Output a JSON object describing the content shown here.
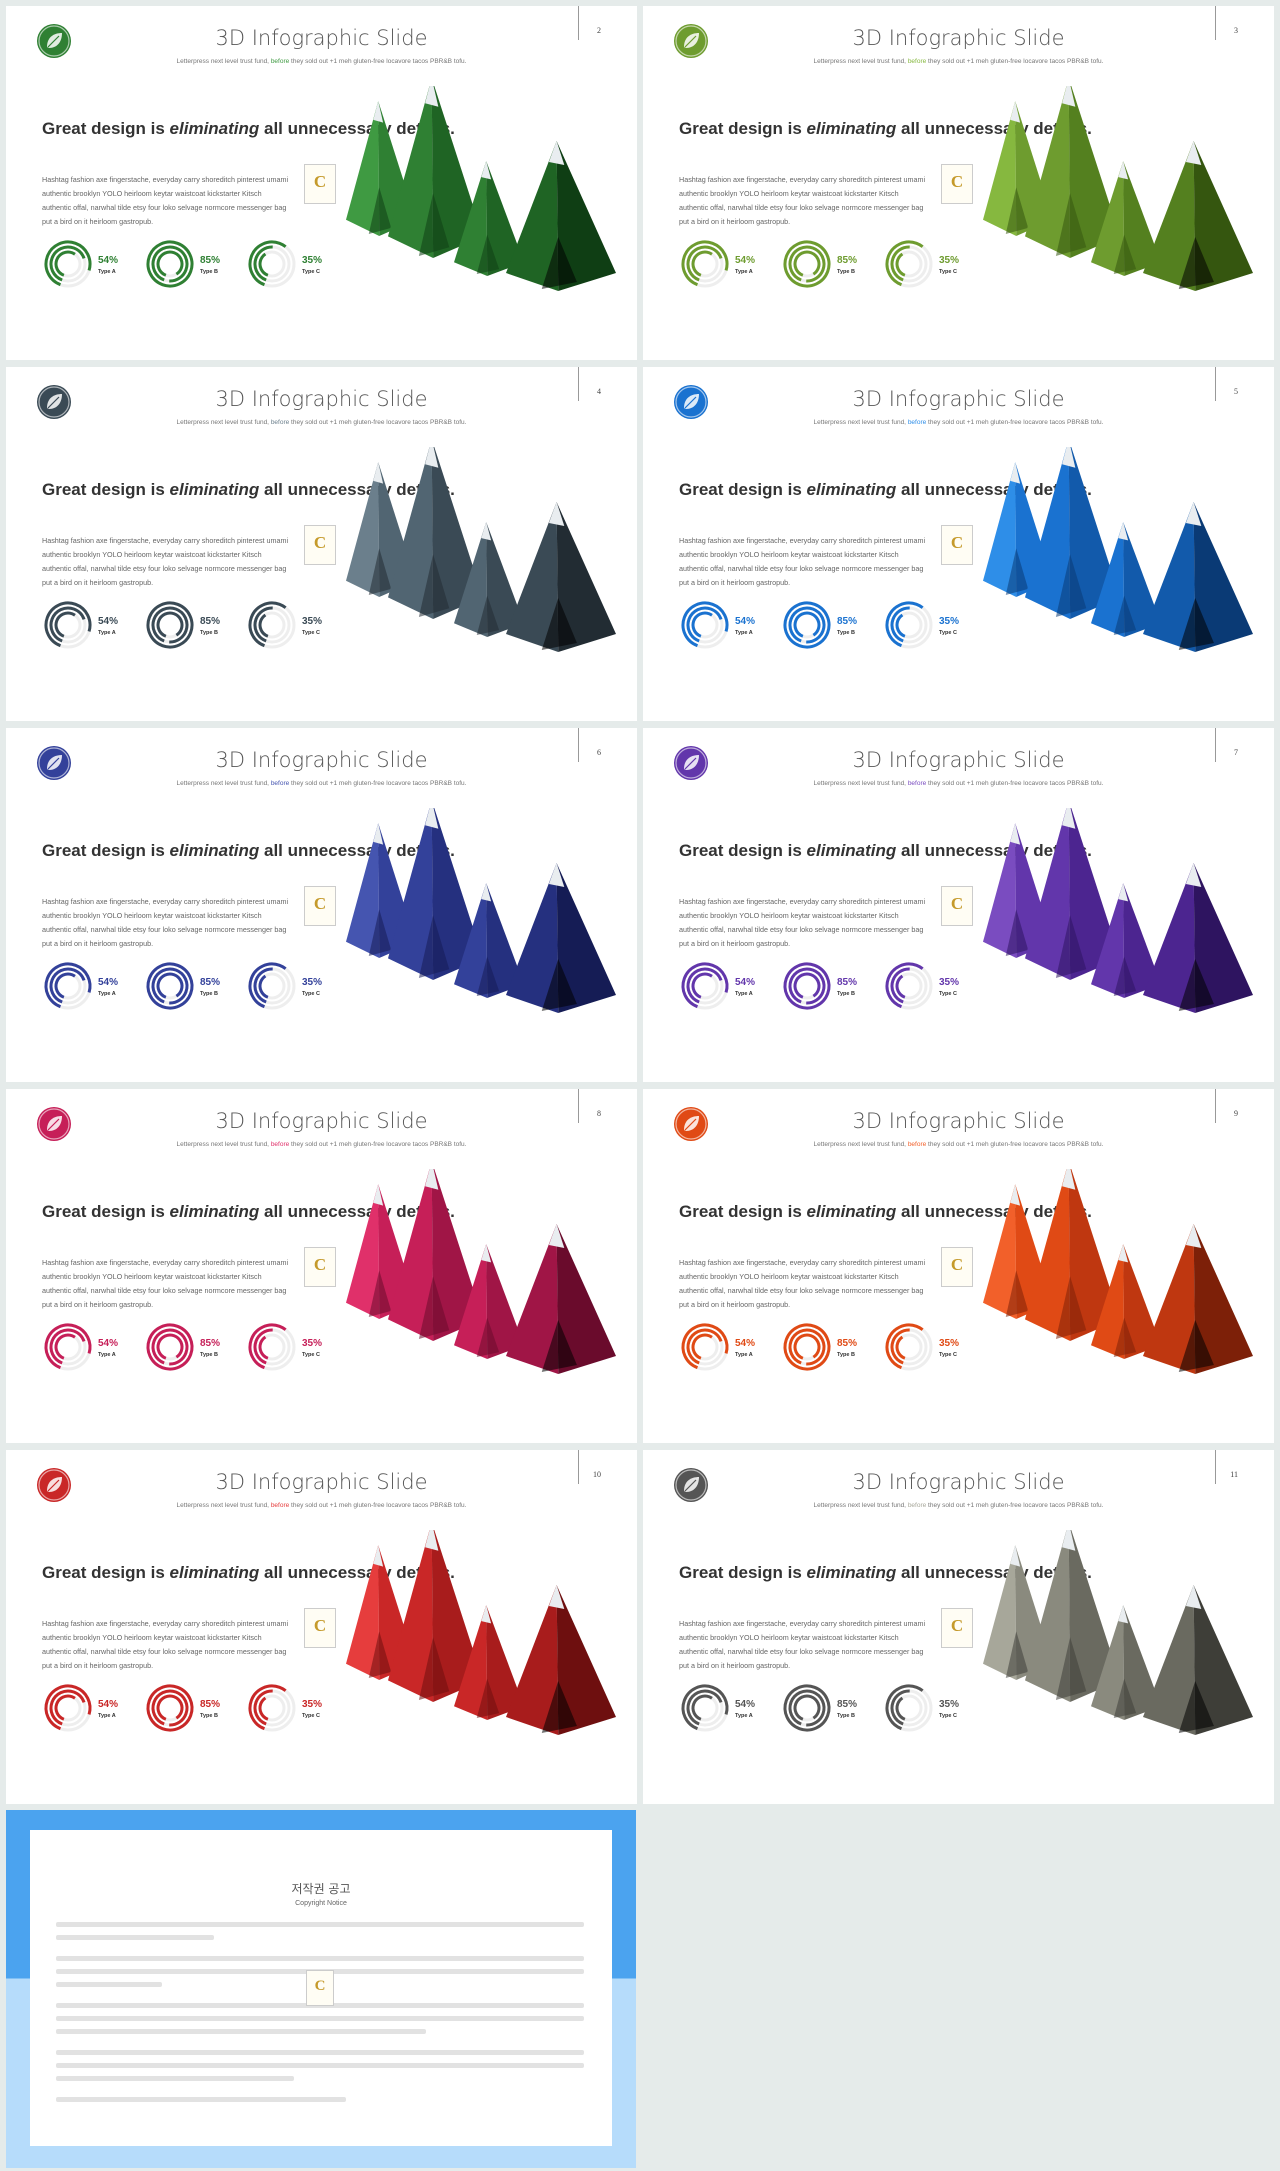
{
  "slide_common": {
    "title": "3D Infographic Slide",
    "subtitle_pre": "Letterpress next level trust fund, ",
    "subtitle_hl": "before",
    "subtitle_post": " they sold out +1 meh gluten-free locavore tacos PBR&B tofu.",
    "heading_pre": "Great design is ",
    "heading_em": "eliminating",
    "heading_post": " all unnecessary details.",
    "body": "Hashtag fashion axe fingerstache, everyday carry shoreditch pinterest umami authentic brooklyn YOLO heirloom keytar waistcoat kickstarter Kitsch authentic offal, narwhal tilde etsy four loko selvage normcore messenger bag put a bird on it heirloom gastropub.",
    "badge_letter": "C",
    "stats": [
      {
        "value": 54,
        "label_value": "54%",
        "type": "Type A"
      },
      {
        "value": 85,
        "label_value": "85%",
        "type": "Type B"
      },
      {
        "value": 35,
        "label_value": "35%",
        "type": "Type C"
      }
    ]
  },
  "slides": [
    {
      "page": "2",
      "palette": [
        "#3f9a42",
        "#2f8033",
        "#1f6424",
        "#0f3e14"
      ],
      "accent": "#2f8033"
    },
    {
      "page": "3",
      "palette": [
        "#86b83f",
        "#6e9c2f",
        "#54801f",
        "#35560f"
      ],
      "accent": "#6e9c2f"
    },
    {
      "page": "4",
      "palette": [
        "#6b7f8c",
        "#516572",
        "#3a4a55",
        "#222c33"
      ],
      "accent": "#3a4a55"
    },
    {
      "page": "5",
      "palette": [
        "#2e8ee8",
        "#1a72d0",
        "#125aab",
        "#0a3a75"
      ],
      "accent": "#1a72d0"
    },
    {
      "page": "6",
      "palette": [
        "#4555b0",
        "#33419a",
        "#25307f",
        "#151c55"
      ],
      "accent": "#33419a"
    },
    {
      "page": "7",
      "palette": [
        "#7a4cc0",
        "#6236ab",
        "#4c2590",
        "#2e1460"
      ],
      "accent": "#6236ab"
    },
    {
      "page": "8",
      "palette": [
        "#e0306a",
        "#c61f58",
        "#a01546",
        "#6a0b2c"
      ],
      "accent": "#c61f58"
    },
    {
      "page": "9",
      "palette": [
        "#f2602a",
        "#e04a15",
        "#bf3710",
        "#7d2008"
      ],
      "accent": "#e04a15"
    },
    {
      "page": "10",
      "palette": [
        "#e63d3d",
        "#c92727",
        "#a81c1c",
        "#6e0f0f"
      ],
      "accent": "#c92727"
    },
    {
      "page": "11",
      "palette": [
        "#a7a79a",
        "#8a8a7e",
        "#6a6a60",
        "#3e3e38"
      ],
      "accent": "#555555"
    }
  ],
  "copyright": {
    "title": "저작권 공고",
    "subtitle": "Copyright Notice",
    "badge_letter": "C"
  }
}
